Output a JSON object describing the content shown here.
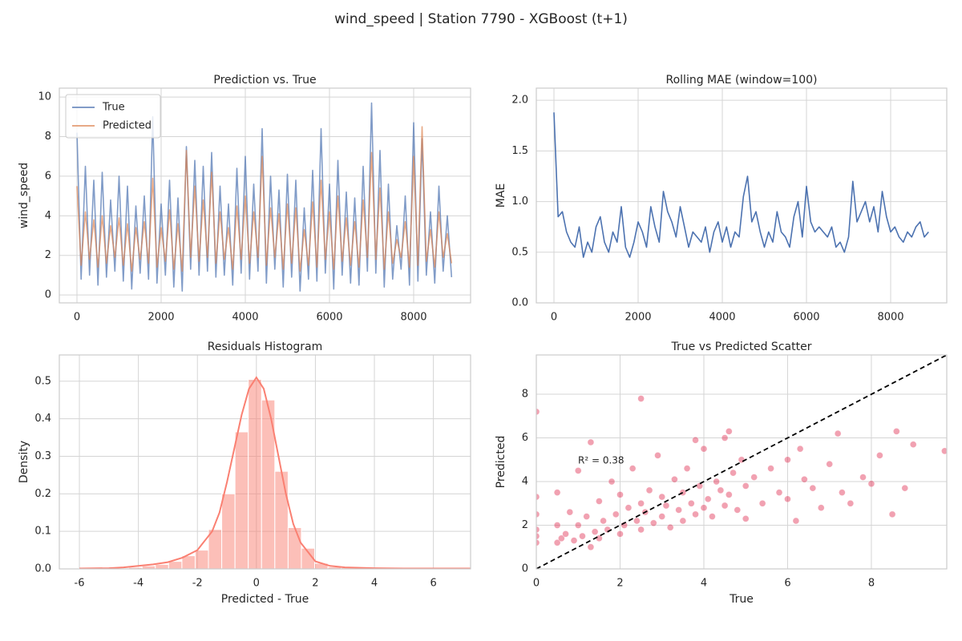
{
  "title": "wind_speed | Station 7790 - XGBoost (t+1)",
  "chart_data": [
    {
      "type": "line",
      "title": "Prediction vs. True",
      "ylabel": "wind_speed",
      "legend": "upper left",
      "grid": true,
      "xlim": [
        -419,
        9352
      ],
      "ylim": [
        -0.4,
        10.45
      ],
      "xticks": [
        0,
        2000,
        4000,
        6000,
        8000
      ],
      "yticks": [
        0,
        2,
        4,
        6,
        8,
        10
      ],
      "x": [
        0,
        100,
        200,
        300,
        400,
        500,
        600,
        700,
        800,
        900,
        1000,
        1100,
        1200,
        1300,
        1400,
        1500,
        1600,
        1700,
        1800,
        1900,
        2000,
        2100,
        2200,
        2300,
        2400,
        2500,
        2600,
        2700,
        2800,
        2900,
        3000,
        3100,
        3200,
        3300,
        3400,
        3500,
        3600,
        3700,
        3800,
        3900,
        4000,
        4100,
        4200,
        4300,
        4400,
        4500,
        4600,
        4700,
        4800,
        4900,
        5000,
        5100,
        5200,
        5300,
        5400,
        5500,
        5600,
        5700,
        5800,
        5900,
        6000,
        6100,
        6200,
        6300,
        6400,
        6500,
        6600,
        6700,
        6800,
        6900,
        7000,
        7100,
        7200,
        7300,
        7400,
        7500,
        7600,
        7700,
        7800,
        7900,
        8000,
        8100,
        8200,
        8300,
        8400,
        8500,
        8600,
        8700,
        8800,
        8900
      ],
      "series": [
        {
          "name": "True",
          "color": "#4c72b0",
          "values": [
            8.2,
            0.8,
            6.5,
            1.0,
            5.8,
            0.5,
            6.2,
            0.9,
            4.8,
            1.2,
            6.0,
            0.7,
            5.5,
            0.3,
            4.5,
            1.1,
            5.0,
            0.8,
            9.0,
            0.6,
            4.6,
            1.0,
            5.8,
            0.4,
            4.9,
            0.2,
            7.5,
            1.3,
            6.8,
            1.0,
            6.5,
            1.2,
            7.2,
            0.9,
            5.5,
            1.0,
            4.6,
            0.5,
            6.4,
            1.1,
            7.0,
            0.8,
            5.6,
            1.2,
            8.4,
            0.6,
            6.0,
            1.3,
            5.3,
            0.4,
            6.1,
            0.9,
            5.8,
            0.2,
            4.4,
            0.8,
            6.3,
            0.7,
            8.4,
            1.1,
            5.6,
            0.3,
            6.8,
            1.0,
            5.2,
            0.6,
            4.9,
            0.5,
            6.5,
            1.2,
            9.7,
            1.1,
            7.3,
            0.4,
            5.6,
            0.8,
            3.5,
            1.3,
            5.0,
            0.5,
            8.7,
            0.7,
            7.9,
            1.0,
            4.2,
            0.6,
            5.5,
            1.2,
            4.0,
            0.9
          ]
        },
        {
          "name": "Predicted",
          "color": "#dd8452",
          "values": [
            5.5,
            1.5,
            4.2,
            1.8,
            3.8,
            1.4,
            4.0,
            1.6,
            3.5,
            1.9,
            3.9,
            1.5,
            3.6,
            1.2,
            3.4,
            1.8,
            3.7,
            1.6,
            5.9,
            1.4,
            3.4,
            1.7,
            4.3,
            1.3,
            3.6,
            1.2,
            7.3,
            1.9,
            5.5,
            1.7,
            4.8,
            1.9,
            6.2,
            1.6,
            4.2,
            1.8,
            3.4,
            1.3,
            4.5,
            1.8,
            5.0,
            1.6,
            4.2,
            1.9,
            7.0,
            1.5,
            4.4,
            1.9,
            4.1,
            1.3,
            4.6,
            1.6,
            4.4,
            1.2,
            3.3,
            1.5,
            4.7,
            1.4,
            5.8,
            1.8,
            4.2,
            1.3,
            5.0,
            1.7,
            3.9,
            1.5,
            3.7,
            1.4,
            4.8,
            1.9,
            7.2,
            1.8,
            5.4,
            1.3,
            4.2,
            1.6,
            2.8,
            1.9,
            3.7,
            1.4,
            7.0,
            1.5,
            8.5,
            1.7,
            3.3,
            1.4,
            4.2,
            1.9,
            3.1,
            1.6
          ]
        }
      ]
    },
    {
      "type": "line",
      "title": "Rolling MAE (window=100)",
      "ylabel": "MAE",
      "grid": true,
      "color": "#4c72b0",
      "xlim": [
        -419,
        9333
      ],
      "ylim": [
        0,
        2.12
      ],
      "xticks": [
        0,
        2000,
        4000,
        6000,
        8000
      ],
      "yticks": [
        {
          "value": 0,
          "label": "0.0"
        },
        0.5,
        {
          "value": 1,
          "label": "1.0"
        },
        1.5,
        {
          "value": 2,
          "label": "2.0"
        }
      ],
      "x": [
        0,
        100,
        200,
        300,
        400,
        500,
        600,
        700,
        800,
        900,
        1000,
        1100,
        1200,
        1300,
        1400,
        1500,
        1600,
        1700,
        1800,
        1900,
        2000,
        2100,
        2200,
        2300,
        2400,
        2500,
        2600,
        2700,
        2800,
        2900,
        3000,
        3100,
        3200,
        3300,
        3400,
        3500,
        3600,
        3700,
        3800,
        3900,
        4000,
        4100,
        4200,
        4300,
        4400,
        4500,
        4600,
        4700,
        4800,
        4900,
        5000,
        5100,
        5200,
        5300,
        5400,
        5500,
        5600,
        5700,
        5800,
        5900,
        6000,
        6100,
        6200,
        6300,
        6400,
        6500,
        6600,
        6700,
        6800,
        6900,
        7000,
        7100,
        7200,
        7300,
        7400,
        7500,
        7600,
        7700,
        7800,
        7900,
        8000,
        8100,
        8200,
        8300,
        8400,
        8500,
        8600,
        8700,
        8800,
        8900
      ],
      "values": [
        1.88,
        0.85,
        0.9,
        0.7,
        0.6,
        0.55,
        0.75,
        0.45,
        0.6,
        0.5,
        0.75,
        0.85,
        0.6,
        0.5,
        0.7,
        0.6,
        0.95,
        0.55,
        0.45,
        0.6,
        0.8,
        0.7,
        0.55,
        0.95,
        0.75,
        0.6,
        1.1,
        0.9,
        0.8,
        0.65,
        0.95,
        0.75,
        0.55,
        0.7,
        0.65,
        0.6,
        0.75,
        0.5,
        0.7,
        0.8,
        0.6,
        0.75,
        0.55,
        0.7,
        0.65,
        1.05,
        1.25,
        0.8,
        0.9,
        0.7,
        0.55,
        0.7,
        0.6,
        0.9,
        0.7,
        0.65,
        0.55,
        0.85,
        1.0,
        0.65,
        1.15,
        0.8,
        0.7,
        0.75,
        0.7,
        0.65,
        0.75,
        0.55,
        0.6,
        0.5,
        0.65,
        1.2,
        0.8,
        0.9,
        1.0,
        0.8,
        0.95,
        0.7,
        1.1,
        0.85,
        0.7,
        0.75,
        0.65,
        0.6,
        0.7,
        0.65,
        0.75,
        0.8,
        0.65,
        0.7
      ]
    },
    {
      "type": "histogram",
      "title": "Residuals Histogram",
      "xlabel": "Predicted - True",
      "ylabel": "Density",
      "grid": true,
      "color": "#fa8072",
      "xlim": [
        -6.68,
        7.26
      ],
      "ylim": [
        0,
        0.57
      ],
      "xticks": [
        -6,
        -4,
        -2,
        0,
        2,
        4,
        6
      ],
      "yticks": [
        {
          "value": 0,
          "label": "0.0"
        },
        0.1,
        0.2,
        0.3,
        0.4,
        0.5
      ],
      "bins": [
        -6.125,
        -5.675,
        -5.225,
        -4.775,
        -4.325,
        -3.875,
        -3.425,
        -2.975,
        -2.525,
        -2.075,
        -1.625,
        -1.175,
        -0.725,
        -0.275,
        0.175,
        0.625,
        1.075,
        1.525,
        1.975,
        2.425,
        2.875,
        3.325,
        3.775,
        4.225,
        4.675,
        5.125,
        5.575,
        6.025,
        6.475,
        6.925,
        7.375
      ],
      "values": [
        0.001,
        0,
        0.001,
        0.002,
        0.004,
        0.008,
        0.012,
        0.02,
        0.035,
        0.05,
        0.105,
        0.2,
        0.365,
        0.505,
        0.45,
        0.26,
        0.11,
        0.055,
        0.015,
        0.005,
        0.003,
        0.002,
        0.001,
        0.001,
        0,
        0,
        0,
        0,
        0,
        0.001
      ],
      "kde": {
        "x": [
          -6,
          -5,
          -4.5,
          -4,
          -3.5,
          -3,
          -2.5,
          -2,
          -1.5,
          -1.25,
          -1,
          -0.75,
          -0.5,
          -0.25,
          0,
          0.25,
          0.5,
          0.75,
          1,
          1.25,
          1.5,
          2,
          2.5,
          3,
          4,
          5,
          6,
          7.25
        ],
        "values": [
          0.001,
          0.002,
          0.004,
          0.008,
          0.012,
          0.018,
          0.03,
          0.05,
          0.1,
          0.15,
          0.23,
          0.32,
          0.41,
          0.48,
          0.51,
          0.48,
          0.4,
          0.3,
          0.2,
          0.12,
          0.07,
          0.02,
          0.008,
          0.004,
          0.002,
          0.001,
          0.001,
          0.001
        ]
      }
    },
    {
      "type": "scatter",
      "title": "True vs Predicted Scatter",
      "xlabel": "True",
      "ylabel": "Predicted",
      "grid": true,
      "color": "#dc143c",
      "annotation": "R² = 0.38",
      "xlim": [
        0,
        9.8
      ],
      "ylim": [
        0,
        9.8
      ],
      "xticks": [
        0,
        2,
        4,
        6,
        8
      ],
      "yticks": [
        0,
        2,
        4,
        6,
        8
      ],
      "x": [
        0,
        0,
        0,
        0,
        0,
        0,
        0.5,
        0.5,
        0.5,
        0.6,
        0.7,
        0.8,
        0.9,
        1.0,
        1.0,
        1.1,
        1.2,
        1.3,
        1.4,
        1.5,
        1.5,
        1.6,
        1.7,
        1.8,
        1.9,
        2.0,
        2.0,
        2.1,
        2.2,
        2.3,
        2.4,
        2.5,
        2.5,
        2.6,
        2.7,
        2.8,
        2.9,
        3.0,
        3.0,
        3.1,
        3.2,
        3.3,
        3.4,
        3.5,
        3.5,
        3.6,
        3.7,
        3.8,
        3.9,
        4.0,
        4.0,
        4.1,
        4.2,
        4.3,
        4.4,
        4.5,
        4.5,
        4.6,
        4.7,
        4.8,
        4.9,
        5.0,
        5.0,
        5.2,
        5.4,
        5.6,
        5.8,
        6.0,
        6.0,
        6.2,
        6.4,
        6.6,
        6.8,
        7.0,
        7.2,
        7.3,
        7.5,
        7.8,
        8.0,
        8.2,
        8.5,
        8.6,
        8.8,
        9.0,
        9.75,
        1.3,
        2.5,
        3.8,
        4.6,
        6.3
      ],
      "values": [
        1.2,
        1.8,
        2.5,
        3.3,
        7.2,
        1.5,
        1.2,
        2.0,
        3.5,
        1.4,
        1.6,
        2.6,
        1.3,
        2.0,
        4.5,
        1.5,
        2.4,
        5.8,
        1.7,
        1.4,
        3.1,
        2.2,
        1.8,
        4.0,
        2.5,
        1.6,
        3.4,
        2.0,
        2.8,
        4.6,
        2.2,
        1.8,
        3.0,
        2.6,
        3.6,
        2.1,
        5.2,
        2.4,
        3.3,
        2.9,
        1.9,
        4.1,
        2.7,
        3.5,
        2.2,
        4.6,
        3.0,
        2.5,
        3.8,
        2.8,
        5.5,
        3.2,
        2.4,
        4.0,
        3.6,
        2.9,
        6.0,
        3.4,
        4.4,
        2.7,
        5.0,
        3.8,
        2.3,
        4.2,
        3.0,
        4.6,
        3.5,
        3.2,
        5.0,
        2.2,
        4.1,
        3.7,
        2.8,
        4.8,
        6.2,
        3.5,
        3.0,
        4.2,
        3.9,
        5.2,
        2.5,
        6.3,
        3.7,
        5.7,
        5.4,
        1.0,
        7.8,
        5.9,
        6.3,
        5.5
      ]
    }
  ]
}
